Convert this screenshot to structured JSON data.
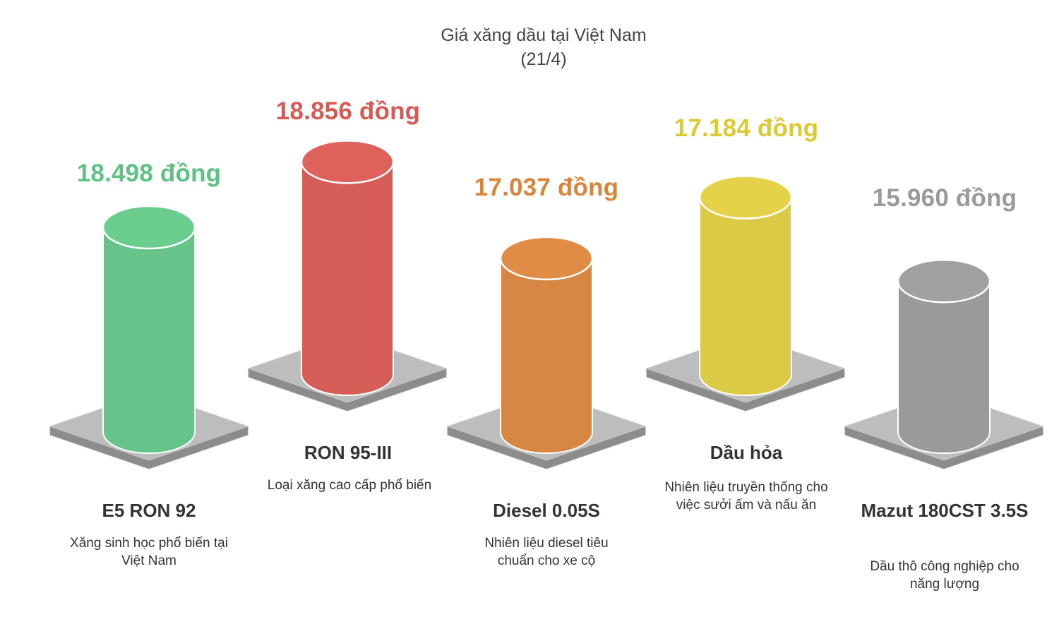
{
  "chart_data": {
    "type": "bar",
    "title": "Giá xăng dầu tại Việt Nam",
    "subtitle": "(21/4)",
    "categories": [
      "E5 RON 92",
      "RON 95-III",
      "Diesel 0.05S",
      "Dầu hỏa",
      "Mazut 180CST 3.5S"
    ],
    "values": [
      18498,
      18856,
      17037,
      17184,
      15960
    ],
    "unit": "đồng",
    "data_labels": [
      "18.498 đồng",
      "18.856 đồng",
      "17.037 đồng",
      "17.184 đồng",
      "15.960 đồng"
    ],
    "descriptions": [
      "Xăng sinh học phổ biến tại Việt Nam",
      "Loại xăng cao cấp phổ biến",
      "Nhiên liệu diesel tiêu chuẩn cho xe cộ",
      "Nhiên liệu truyền thống cho việc sưởi ấm và nấu ăn",
      "Dầu thô công nghiệp cho năng lượng"
    ],
    "colors": [
      "#66c488",
      "#d65d58",
      "#d78643",
      "#dcca46",
      "#9a9a9a"
    ],
    "label_colors": [
      "#5ec282",
      "#d85a55",
      "#d9853c",
      "#dcca34",
      "#9a9a9a"
    ]
  }
}
